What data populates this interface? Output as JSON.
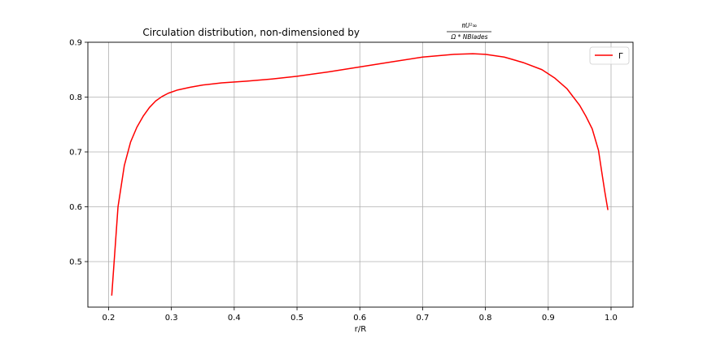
{
  "chart_data": {
    "type": "line",
    "title_prefix": "Circulation distribution, non-dimensioned by",
    "title_fraction": {
      "numerator": "πU²∞",
      "denominator": "Ω * NBlades"
    },
    "xlabel": "r/R",
    "ylabel": "",
    "xlim": [
      0.167,
      1.035
    ],
    "ylim": [
      0.417,
      0.9
    ],
    "x_ticks": [
      0.2,
      0.3,
      0.4,
      0.5,
      0.6,
      0.7,
      0.8,
      0.9,
      1.0
    ],
    "x_tick_labels": [
      "0.2",
      "0.3",
      "0.4",
      "0.5",
      "0.6",
      "0.7",
      "0.8",
      "0.9",
      "1.0"
    ],
    "y_ticks": [
      0.5,
      0.6,
      0.7,
      0.8,
      0.9
    ],
    "y_tick_labels": [
      "0.5",
      "0.6",
      "0.7",
      "0.8",
      "0.9"
    ],
    "grid": true,
    "legend_position": "top-right",
    "series": [
      {
        "name": "Γ",
        "color": "#ff0000",
        "x": [
          0.205,
          0.215,
          0.225,
          0.235,
          0.245,
          0.255,
          0.265,
          0.275,
          0.285,
          0.295,
          0.31,
          0.33,
          0.35,
          0.38,
          0.42,
          0.46,
          0.5,
          0.55,
          0.6,
          0.65,
          0.7,
          0.75,
          0.78,
          0.8,
          0.83,
          0.86,
          0.89,
          0.91,
          0.93,
          0.95,
          0.96,
          0.97,
          0.98,
          0.985,
          0.99,
          0.995
        ],
        "y": [
          0.438,
          0.6,
          0.675,
          0.718,
          0.745,
          0.765,
          0.781,
          0.793,
          0.801,
          0.807,
          0.813,
          0.818,
          0.822,
          0.826,
          0.829,
          0.833,
          0.838,
          0.846,
          0.855,
          0.864,
          0.873,
          0.878,
          0.879,
          0.878,
          0.873,
          0.863,
          0.85,
          0.835,
          0.815,
          0.785,
          0.765,
          0.742,
          0.703,
          0.665,
          0.628,
          0.594
        ]
      }
    ]
  }
}
